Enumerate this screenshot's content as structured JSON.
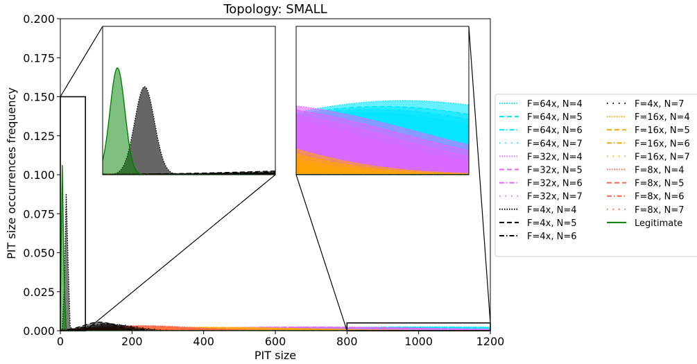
{
  "chart_data": {
    "type": "area",
    "title": "Topology: SMALL",
    "xlabel": "PIT size",
    "ylabel": "PIT size occurrences frequency",
    "xlim": [
      0,
      1200
    ],
    "ylim": [
      0,
      0.2
    ],
    "xticks": [
      "0",
      "200",
      "400",
      "600",
      "800",
      "1000",
      "1200"
    ],
    "yticks": [
      "0.000",
      "0.025",
      "0.050",
      "0.075",
      "0.100",
      "0.125",
      "0.150",
      "0.175",
      "0.200"
    ],
    "grid": false,
    "legend_position": "right",
    "legend_columns": 2,
    "zoom_insets": [
      {
        "region_x": [
          0,
          70
        ],
        "region_y": [
          0,
          0.15
        ]
      },
      {
        "region_x": [
          800,
          1200
        ],
        "region_y": [
          0,
          0.005
        ]
      }
    ],
    "series": [
      {
        "name": "F=64x, N=4",
        "color": "#00e5ff",
        "style": "dotted",
        "family": "F64",
        "mean": 1050,
        "sd": 420,
        "peak": 0.0025
      },
      {
        "name": "F=64x, N=5",
        "color": "#00e5ff",
        "style": "dashed",
        "family": "F64",
        "mean": 1000,
        "sd": 400,
        "peak": 0.0023
      },
      {
        "name": "F=64x, N=6",
        "color": "#00e5ff",
        "style": "dashdot",
        "family": "F64",
        "mean": 980,
        "sd": 380,
        "peak": 0.0022
      },
      {
        "name": "F=64x, N=7",
        "color": "#00e5ff",
        "style": "loose",
        "family": "F64",
        "mean": 960,
        "sd": 360,
        "peak": 0.0021
      },
      {
        "name": "F=32x, N=4",
        "color": "#e066ff",
        "style": "dotted",
        "family": "F32",
        "mean": 700,
        "sd": 380,
        "peak": 0.0024
      },
      {
        "name": "F=32x, N=5",
        "color": "#e066ff",
        "style": "dashed",
        "family": "F32",
        "mean": 680,
        "sd": 360,
        "peak": 0.0023
      },
      {
        "name": "F=32x, N=6",
        "color": "#e066ff",
        "style": "dashdot",
        "family": "F32",
        "mean": 660,
        "sd": 340,
        "peak": 0.0022
      },
      {
        "name": "F=32x, N=7",
        "color": "#e066ff",
        "style": "loose",
        "family": "F32",
        "mean": 640,
        "sd": 320,
        "peak": 0.0021
      },
      {
        "name": "F=4x, N=4",
        "color": "#000000",
        "style": "dotted",
        "family": "F4",
        "mean": 17,
        "sd": 4,
        "peak": 0.089
      },
      {
        "name": "F=4x, N=5",
        "color": "#000000",
        "style": "dashed",
        "family": "F4",
        "mean": 110,
        "sd": 45,
        "peak": 0.0055
      },
      {
        "name": "F=4x, N=6",
        "color": "#000000",
        "style": "dashdot",
        "family": "F4",
        "mean": 130,
        "sd": 55,
        "peak": 0.0045
      },
      {
        "name": "F=4x, N=7",
        "color": "#000000",
        "style": "loose",
        "family": "F4",
        "mean": 150,
        "sd": 65,
        "peak": 0.004
      },
      {
        "name": "F=16x, N=4",
        "color": "#ffa500",
        "style": "dotted",
        "family": "F16",
        "mean": 420,
        "sd": 280,
        "peak": 0.0022
      },
      {
        "name": "F=16x, N=5",
        "color": "#ffa500",
        "style": "dashed",
        "family": "F16",
        "mean": 400,
        "sd": 270,
        "peak": 0.0021
      },
      {
        "name": "F=16x, N=6",
        "color": "#ffa500",
        "style": "dashdot",
        "family": "F16",
        "mean": 380,
        "sd": 260,
        "peak": 0.002
      },
      {
        "name": "F=16x, N=7",
        "color": "#ffa500",
        "style": "loose",
        "family": "F16",
        "mean": 360,
        "sd": 250,
        "peak": 0.0019
      },
      {
        "name": "F=8x, N=4",
        "color": "#ff6347",
        "style": "dotted",
        "family": "F8",
        "mean": 240,
        "sd": 140,
        "peak": 0.0032
      },
      {
        "name": "F=8x, N=5",
        "color": "#ff6347",
        "style": "dashed",
        "family": "F8",
        "mean": 230,
        "sd": 130,
        "peak": 0.003
      },
      {
        "name": "F=8x, N=6",
        "color": "#ff6347",
        "style": "dashdot",
        "family": "F8",
        "mean": 220,
        "sd": 125,
        "peak": 0.0029
      },
      {
        "name": "F=8x, N=7",
        "color": "#ff6347",
        "style": "loose",
        "family": "F8",
        "mean": 210,
        "sd": 120,
        "peak": 0.0028
      },
      {
        "name": "Legitimate",
        "color": "#008000",
        "style": "solid",
        "family": "LEG",
        "mean": 6,
        "sd": 3,
        "peak": 0.108
      }
    ]
  }
}
